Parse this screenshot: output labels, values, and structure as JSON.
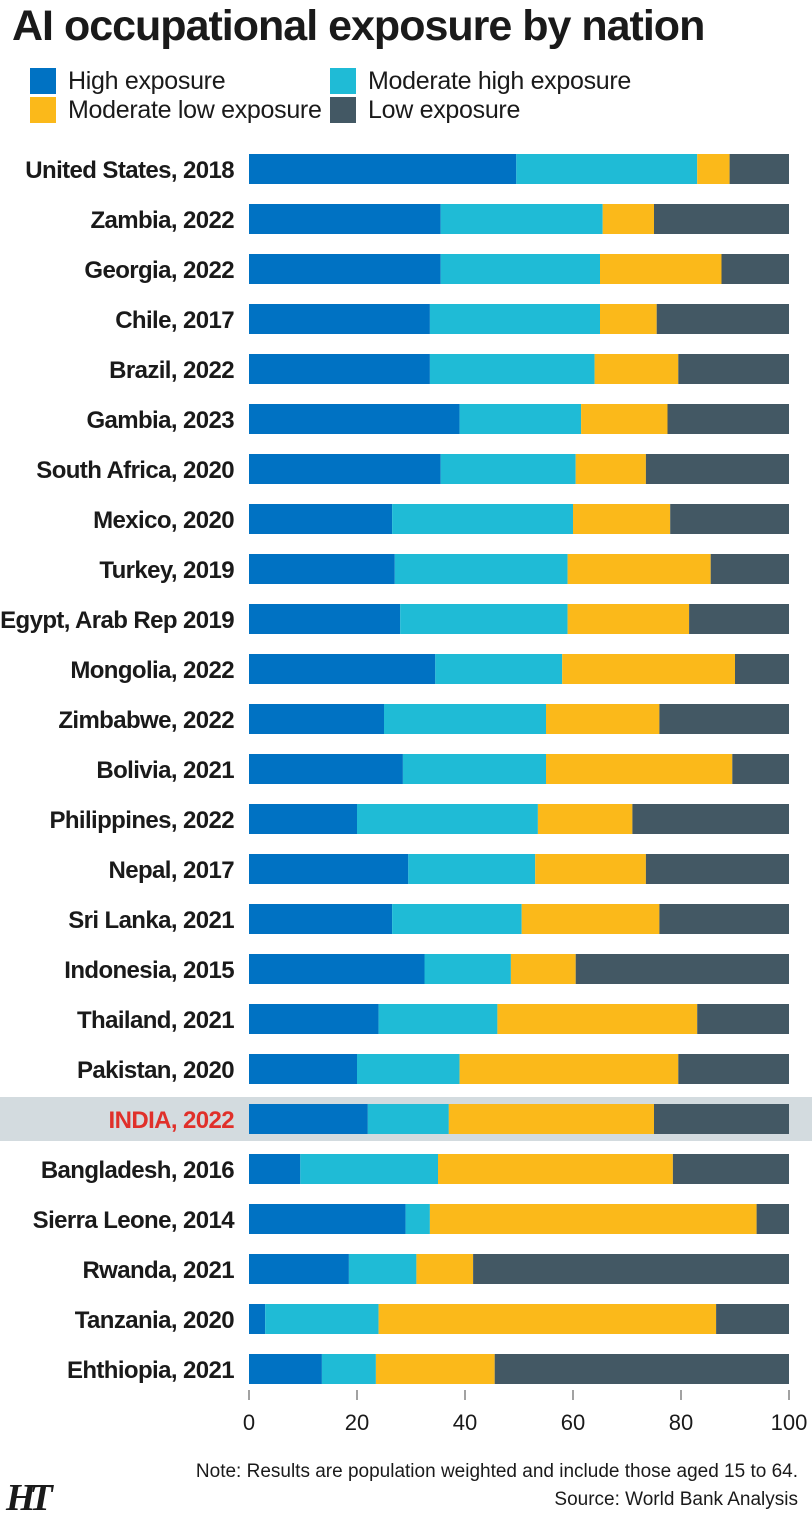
{
  "page": {
    "title": "AI occupational exposure by nation",
    "note": "Note: Results are population weighted and include those aged 15 to 64.",
    "source": "Source: World Bank Analysis",
    "logo_text": "HT"
  },
  "colors": {
    "high": "#0072c3",
    "mod_high": "#1fbbd6",
    "mod_low": "#fbb91a",
    "low": "#435864",
    "highlight_row": "#d3dbdf",
    "highlight_text": "#e0302a"
  },
  "chart_data": {
    "type": "bar",
    "orientation": "horizontal",
    "stacked": true,
    "title": "AI occupational exposure by nation",
    "xlim": [
      0,
      100
    ],
    "xticks": [
      "0",
      "20",
      "40",
      "60",
      "80",
      "100"
    ],
    "legend": "top",
    "highlight": "INDIA, 2022",
    "categories": [
      "United States, 2018",
      "Zambia, 2022",
      "Georgia, 2022",
      "Chile, 2017",
      "Brazil, 2022",
      "Gambia, 2023",
      "South Africa, 2020",
      "Mexico, 2020",
      "Turkey, 2019",
      "Egypt, Arab Rep 2019",
      "Mongolia, 2022",
      "Zimbabwe, 2022",
      "Bolivia, 2021",
      "Philippines, 2022",
      "Nepal, 2017",
      "Sri Lanka, 2021",
      "Indonesia, 2015",
      "Thailand, 2021",
      "Pakistan, 2020",
      "INDIA, 2022",
      "Bangladesh, 2016",
      "Sierra Leone, 2014",
      "Rwanda, 2021",
      "Tanzania, 2020",
      "Ehthiopia, 2021"
    ],
    "series": [
      {
        "name": "High exposure",
        "key": "high",
        "values": [
          49.5,
          35.5,
          35.5,
          33.5,
          33.5,
          39,
          35.5,
          26.5,
          27,
          28,
          34.5,
          25,
          28.5,
          20,
          29.5,
          26.5,
          32.5,
          24,
          20,
          22,
          9.5,
          29,
          18.5,
          3,
          13.5
        ]
      },
      {
        "name": "Moderate high exposure",
        "key": "mod_high",
        "values": [
          33.5,
          30,
          29.5,
          31.5,
          30.5,
          22.5,
          25,
          33.5,
          32,
          31,
          23.5,
          30,
          26.5,
          33.5,
          23.5,
          24,
          16,
          22,
          19,
          15,
          25.5,
          4.5,
          12.5,
          21,
          10
        ]
      },
      {
        "name": "Moderate low exposure",
        "key": "mod_low",
        "values": [
          6,
          9.5,
          22.5,
          10.5,
          15.5,
          16,
          13,
          18,
          26.5,
          22.5,
          32,
          21,
          34.5,
          17.5,
          20.5,
          25.5,
          12,
          37,
          40.5,
          38,
          43.5,
          60.5,
          10.5,
          62.5,
          22
        ]
      },
      {
        "name": "Low exposure",
        "key": "low",
        "values": [
          11,
          25,
          12.5,
          24.5,
          20.5,
          22.5,
          26.5,
          22,
          14.5,
          18.5,
          10,
          24,
          10.5,
          29,
          26.5,
          24,
          39.5,
          17,
          20.5,
          25,
          21.5,
          6,
          58.5,
          13.5,
          54.5
        ]
      }
    ]
  }
}
